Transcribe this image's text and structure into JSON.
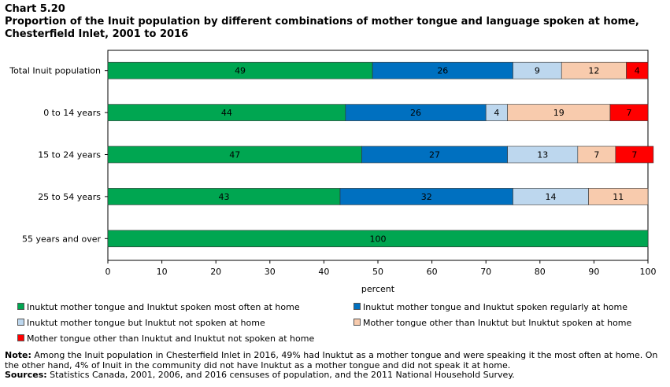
{
  "header": {
    "chart_label": "Chart 5.20",
    "title": "Proportion of the Inuit population by different combinations of mother tongue and language spoken at home, Chesterfield Inlet, 2001 to 2016"
  },
  "chart_data": {
    "type": "bar",
    "orientation": "horizontal",
    "stacked": true,
    "categories": [
      "Total Inuit population",
      "0 to 14 years",
      "15 to 24 years",
      "25 to 54 years",
      "55 years and over"
    ],
    "series": [
      {
        "name": "Inuktut mother tongue and Inuktut spoken most often at home",
        "color": "#00a651",
        "values": [
          49,
          44,
          47,
          43,
          100
        ]
      },
      {
        "name": "Inuktut mother tongue and Inuktut spoken regularly at home",
        "color": "#0070c0",
        "values": [
          26,
          26,
          27,
          32,
          0
        ]
      },
      {
        "name": "Inuktut mother tongue but Inuktut not spoken at home",
        "color": "#bdd7ee",
        "values": [
          9,
          4,
          13,
          14,
          0
        ]
      },
      {
        "name": "Mother tongue other than Inuktut but Inuktut spoken at home",
        "color": "#f8cbad",
        "values": [
          12,
          19,
          7,
          11,
          0
        ]
      },
      {
        "name": "Mother tongue other than Inuktut and Inuktut not spoken at home",
        "color": "#ff0000",
        "values": [
          4,
          7,
          7,
          0,
          0
        ]
      }
    ],
    "xlabel": "percent",
    "xlim": [
      0,
      100
    ],
    "xticks": [
      0,
      10,
      20,
      30,
      40,
      50,
      60,
      70,
      80,
      90,
      100
    ],
    "legend_position": "bottom"
  },
  "notes": {
    "note_label": "Note:",
    "note_text": "Among the Inuit population in Chesterfield Inlet in 2016, 49% had Inuktut as a mother tongue and were speaking it the most often at home. On the other hand, 4% of Inuit in the community did not have Inuktut as a mother tongue and did not speak it at home.",
    "sources_label": "Sources:",
    "sources_text": "Statistics Canada, 2001, 2006, and 2016 censuses of population, and the 2011 National Household Survey."
  }
}
